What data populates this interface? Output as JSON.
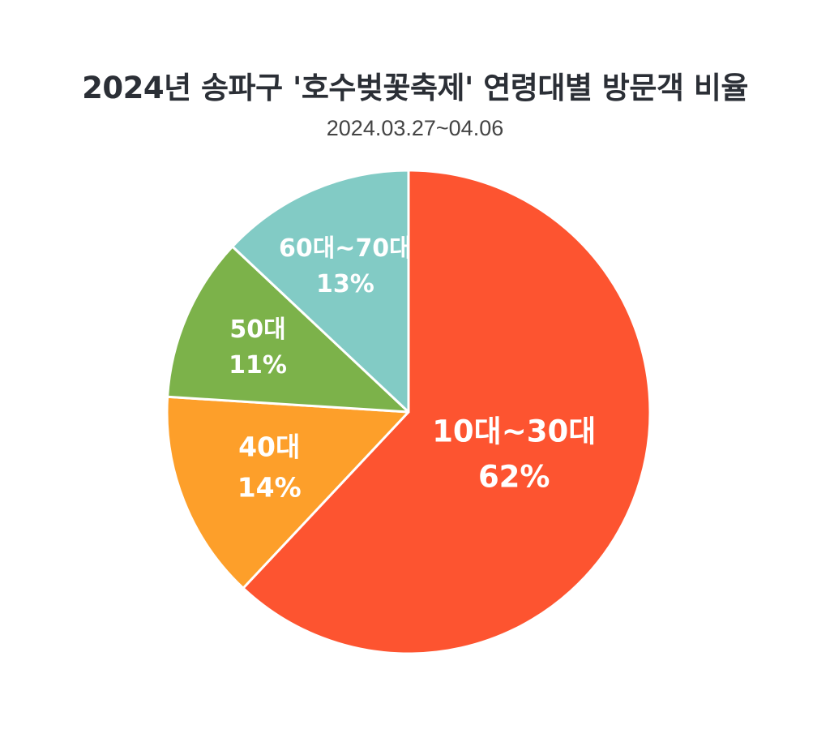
{
  "title": "2024년 송파구 '호수벚꽃축제' 연령대별 방문객 비율",
  "subtitle": "2024.03.27~04.06",
  "chart_data": {
    "type": "pie",
    "title": "2024년 송파구 '호수벚꽃축제' 연령대별 방문객 비율",
    "subtitle": "2024.03.27~04.06",
    "start_angle_deg": 0,
    "direction": "clockwise",
    "slices": [
      {
        "label": "10대~30대",
        "value": 62,
        "display": "62%",
        "color": "#fd5430"
      },
      {
        "label": "40대",
        "value": 14,
        "display": "14%",
        "color": "#fd9f2a"
      },
      {
        "label": "50대",
        "value": 11,
        "display": "11%",
        "color": "#7cb24a"
      },
      {
        "label": "60대~70대",
        "value": 13,
        "display": "13%",
        "color": "#82cbc5"
      }
    ]
  }
}
